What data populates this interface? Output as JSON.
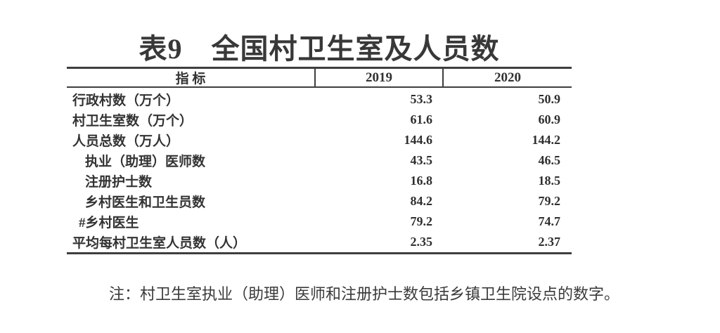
{
  "title": "表9　全国村卫生室及人员数",
  "table": {
    "headers": {
      "indicator": "指  标",
      "y2019": "2019",
      "y2020": "2020"
    },
    "rows": [
      {
        "label": "行政村数（万个）",
        "v2019": "53.3",
        "v2020": "50.9",
        "indent": 0
      },
      {
        "label": "村卫生室数（万个）",
        "v2019": "61.6",
        "v2020": "60.9",
        "indent": 0
      },
      {
        "label": "人员总数（万人）",
        "v2019": "144.6",
        "v2020": "144.2",
        "indent": 0
      },
      {
        "label": "执业（助理）医师数",
        "v2019": "43.5",
        "v2020": "46.5",
        "indent": 1
      },
      {
        "label": "注册护士数",
        "v2019": "16.8",
        "v2020": "18.5",
        "indent": 1
      },
      {
        "label": "乡村医生和卫生员数",
        "v2019": "84.2",
        "v2020": "79.2",
        "indent": 1
      },
      {
        "label": "#乡村医生",
        "v2019": "79.2",
        "v2020": "74.7",
        "indent": 2
      },
      {
        "label": "平均每村卫生室人员数（人）",
        "v2019": "2.35",
        "v2020": "2.37",
        "indent": 0
      }
    ]
  },
  "note": "注：村卫生室执业（助理）医师和注册护士数包括乡镇卫生院设点的数字。",
  "colors": {
    "text": "#333333",
    "line": "#3e3e3e",
    "background": "#ffffff"
  }
}
